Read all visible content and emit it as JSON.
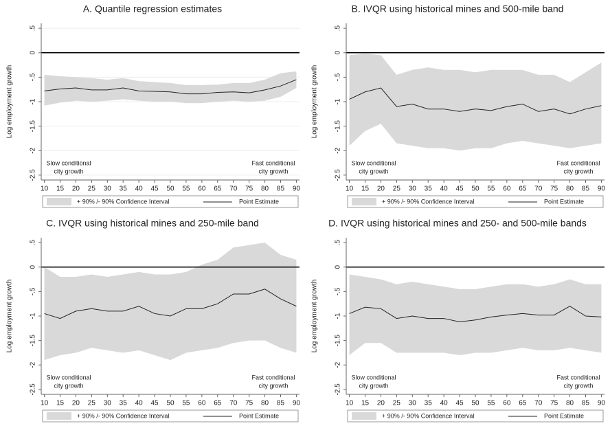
{
  "chart_data": [
    {
      "type": "line",
      "title": "A. Quantile regression estimates",
      "ylabel": "Log employment growth",
      "x": [
        10,
        15,
        20,
        25,
        30,
        35,
        40,
        45,
        50,
        55,
        60,
        65,
        70,
        75,
        80,
        85,
        90
      ],
      "series": [
        {
          "name": "+ 90% /- 90% Confidence Interval",
          "color": "#d9d9d9",
          "upper": [
            -0.45,
            -0.48,
            -0.5,
            -0.52,
            -0.55,
            -0.52,
            -0.58,
            -0.6,
            -0.62,
            -0.66,
            -0.66,
            -0.65,
            -0.62,
            -0.62,
            -0.55,
            -0.42,
            -0.38
          ],
          "lower": [
            -1.08,
            -1.02,
            -0.98,
            -1.0,
            -0.98,
            -0.95,
            -0.98,
            -1.0,
            -1.0,
            -1.03,
            -1.03,
            -1.0,
            -0.98,
            -1.0,
            -0.98,
            -0.9,
            -0.72
          ]
        },
        {
          "name": "Point Estimate",
          "color": "#222222",
          "values": [
            -0.78,
            -0.74,
            -0.72,
            -0.76,
            -0.76,
            -0.72,
            -0.78,
            -0.79,
            -0.8,
            -0.84,
            -0.84,
            -0.81,
            -0.8,
            -0.82,
            -0.76,
            -0.68,
            -0.55
          ]
        }
      ],
      "reference_line": 0,
      "annotations": [
        [
          "Slow conditional",
          "city growth"
        ],
        [
          "Fast conditional",
          "city growth"
        ]
      ],
      "xlim": [
        9,
        91
      ],
      "xticks": [
        10,
        15,
        20,
        25,
        30,
        35,
        40,
        45,
        50,
        55,
        60,
        65,
        70,
        75,
        80,
        85,
        90
      ],
      "ylim": [
        -2.6,
        0.6
      ],
      "yticks": [
        {
          "value": 0.5,
          "label": ".5"
        },
        0,
        {
          "value": -0.5,
          "label": "-.5"
        },
        -1,
        -1.5,
        -2,
        -2.5
      ],
      "grid": true
    },
    {
      "type": "line",
      "title": "B. IVQR using historical mines and 500-mile band",
      "ylabel": "Log employment growth",
      "x": [
        10,
        15,
        20,
        25,
        30,
        35,
        40,
        45,
        50,
        55,
        60,
        65,
        70,
        75,
        80,
        85,
        90
      ],
      "series": [
        {
          "name": "+ 90% /- 90% Confidence Interval",
          "color": "#d9d9d9",
          "upper": [
            -0.05,
            -0.02,
            -0.05,
            -0.45,
            -0.35,
            -0.3,
            -0.35,
            -0.35,
            -0.4,
            -0.35,
            -0.35,
            -0.35,
            -0.45,
            -0.45,
            -0.6,
            -0.4,
            -0.2
          ],
          "lower": [
            -1.9,
            -1.6,
            -1.45,
            -1.85,
            -1.9,
            -1.95,
            -1.95,
            -2.0,
            -1.95,
            -1.95,
            -1.85,
            -1.8,
            -1.85,
            -1.9,
            -1.95,
            -1.9,
            -1.85
          ]
        },
        {
          "name": "Point Estimate",
          "color": "#222222",
          "values": [
            -0.95,
            -0.8,
            -0.72,
            -1.1,
            -1.05,
            -1.15,
            -1.15,
            -1.2,
            -1.15,
            -1.18,
            -1.1,
            -1.05,
            -1.2,
            -1.15,
            -1.25,
            -1.15,
            -1.08
          ]
        }
      ],
      "reference_line": 0,
      "annotations": [
        [
          "Slow conditional",
          "city growth"
        ],
        [
          "Fast conditional",
          "city growth"
        ]
      ],
      "xlim": [
        9,
        91
      ],
      "xticks": [
        10,
        15,
        20,
        25,
        30,
        35,
        40,
        45,
        50,
        55,
        60,
        65,
        70,
        75,
        80,
        85,
        90
      ],
      "ylim": [
        -2.6,
        0.6
      ],
      "yticks": [
        {
          "value": 0.5,
          "label": ".5"
        },
        0,
        {
          "value": -0.5,
          "label": "-.5"
        },
        -1,
        -1.5,
        -2,
        -2.5
      ],
      "grid": false
    },
    {
      "type": "line",
      "title": "C. IVQR using historical mines and 250-mile band",
      "ylabel": "Log employment growth",
      "x": [
        10,
        15,
        20,
        25,
        30,
        35,
        40,
        45,
        50,
        55,
        60,
        65,
        70,
        75,
        80,
        85,
        90
      ],
      "series": [
        {
          "name": "+ 90% /- 90% Confidence Interval",
          "color": "#d9d9d9",
          "upper": [
            0.0,
            -0.2,
            -0.2,
            -0.15,
            -0.2,
            -0.15,
            -0.1,
            -0.15,
            -0.15,
            -0.1,
            0.05,
            0.15,
            0.4,
            0.45,
            0.5,
            0.25,
            0.15
          ],
          "lower": [
            -1.9,
            -1.8,
            -1.75,
            -1.65,
            -1.7,
            -1.75,
            -1.7,
            -1.8,
            -1.9,
            -1.75,
            -1.7,
            -1.65,
            -1.55,
            -1.5,
            -1.5,
            -1.65,
            -1.75
          ]
        },
        {
          "name": "Point Estimate",
          "color": "#222222",
          "values": [
            -0.95,
            -1.05,
            -0.9,
            -0.85,
            -0.9,
            -0.9,
            -0.8,
            -0.95,
            -1.0,
            -0.85,
            -0.85,
            -0.75,
            -0.55,
            -0.55,
            -0.45,
            -0.65,
            -0.8
          ]
        }
      ],
      "reference_line": 0,
      "annotations": [
        [
          "Slow conditional",
          "city growth"
        ],
        [
          "Fast conditional",
          "city growth"
        ]
      ],
      "xlim": [
        9,
        91
      ],
      "xticks": [
        10,
        15,
        20,
        25,
        30,
        35,
        40,
        45,
        50,
        55,
        60,
        65,
        70,
        75,
        80,
        85,
        90
      ],
      "ylim": [
        -2.6,
        0.6
      ],
      "yticks": [
        {
          "value": 0.5,
          "label": ".5"
        },
        0,
        {
          "value": -0.5,
          "label": "-.5"
        },
        -1,
        -1.5,
        -2,
        -2.5
      ],
      "grid": false
    },
    {
      "type": "line",
      "title": "D. IVQR using historical mines and 250- and 500-mile bands",
      "ylabel": "Log employment growth",
      "x": [
        10,
        15,
        20,
        25,
        30,
        35,
        40,
        45,
        50,
        55,
        60,
        65,
        70,
        75,
        80,
        85,
        90
      ],
      "series": [
        {
          "name": "+ 90% /- 90% Confidence Interval",
          "color": "#d9d9d9",
          "upper": [
            -0.15,
            -0.2,
            -0.25,
            -0.35,
            -0.3,
            -0.35,
            -0.4,
            -0.45,
            -0.45,
            -0.4,
            -0.35,
            -0.35,
            -0.4,
            -0.35,
            -0.25,
            -0.35,
            -0.35
          ],
          "lower": [
            -1.8,
            -1.55,
            -1.55,
            -1.75,
            -1.75,
            -1.75,
            -1.75,
            -1.8,
            -1.75,
            -1.75,
            -1.7,
            -1.65,
            -1.7,
            -1.7,
            -1.65,
            -1.7,
            -1.75
          ]
        },
        {
          "name": "Point Estimate",
          "color": "#222222",
          "values": [
            -0.95,
            -0.82,
            -0.85,
            -1.05,
            -1.0,
            -1.05,
            -1.05,
            -1.12,
            -1.08,
            -1.02,
            -0.98,
            -0.95,
            -0.98,
            -0.98,
            -0.8,
            -1.0,
            -1.02
          ]
        }
      ],
      "reference_line": 0,
      "annotations": [
        [
          "Slow conditional",
          "city growth"
        ],
        [
          "Fast conditional",
          "city growth"
        ]
      ],
      "xlim": [
        9,
        91
      ],
      "xticks": [
        10,
        15,
        20,
        25,
        30,
        35,
        40,
        45,
        50,
        55,
        60,
        65,
        70,
        75,
        80,
        85,
        90
      ],
      "ylim": [
        -2.6,
        0.6
      ],
      "yticks": [
        {
          "value": 0.5,
          "label": ".5"
        },
        0,
        {
          "value": -0.5,
          "label": "-.5"
        },
        -1,
        -1.5,
        -2,
        -2.5
      ],
      "grid": false
    }
  ]
}
